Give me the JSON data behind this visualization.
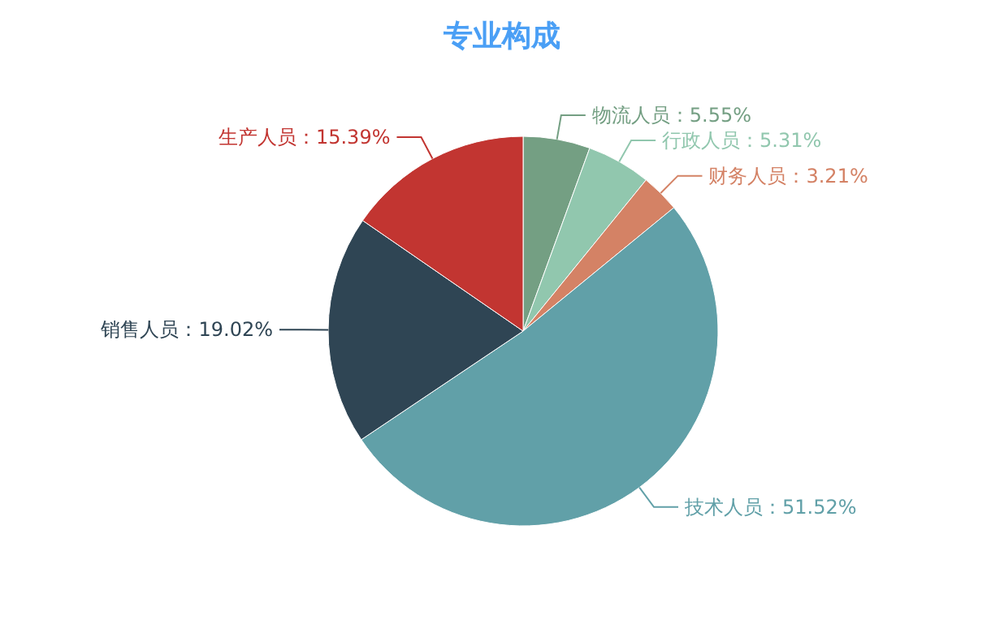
{
  "chart_data": {
    "type": "pie",
    "title": "专业构成",
    "categories": [
      "物流人员",
      "行政人员",
      "财务人员",
      "技术人员",
      "销售人员",
      "生产人员"
    ],
    "values": [
      5.55,
      5.31,
      3.21,
      51.52,
      19.02,
      15.39
    ],
    "colors": [
      "#749f83",
      "#91c7ae",
      "#d48265",
      "#61a0a8",
      "#2f4554",
      "#c23531"
    ],
    "value_labels": [
      "5.55%",
      "5.31%",
      "3.21%",
      "51.52%",
      "19.02%",
      "15.39%"
    ]
  }
}
